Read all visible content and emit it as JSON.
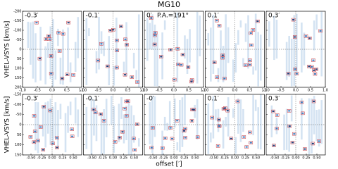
{
  "title": "MG10",
  "chart_data": [
    {
      "type": "image-grid",
      "panels": [
        "-0.3′",
        "-0.1′",
        "0′",
        "0.1′",
        "0.3′"
      ],
      "annotation": "P.A.=191°",
      "ylabel": "VHEL-VSYS [km/s]",
      "xlim": [
        -1,
        1
      ],
      "xticks": [
        {
          "value": -1,
          "label": "-1.0"
        },
        -0.5,
        {
          "value": 0,
          "label": "0.0"
        },
        0.5,
        {
          "value": 1,
          "label": "1.0"
        }
      ],
      "ylim": [
        -200,
        200
      ],
      "yticks": [
        -200,
        -150,
        -100,
        -50,
        0,
        50,
        100,
        150,
        200
      ],
      "y_inverted": true
    },
    {
      "type": "image-grid",
      "panels": [
        "-0.3′",
        "-0.1′",
        "-0′",
        "0.1′",
        "0.3′"
      ],
      "ylabel": "VHEL-VSYS [km/s]",
      "xlabel": "offset [′]",
      "xlim": [
        -0.7,
        0.7
      ],
      "xticks": [
        {
          "value": -0.5,
          "label": "-0.50"
        },
        -0.25,
        {
          "value": 0,
          "label": "0.00"
        },
        0.25,
        {
          "value": 0.5,
          "label": "0.50"
        }
      ],
      "ylim": [
        -150,
        150
      ],
      "yticks": [
        -150,
        -100,
        -50,
        0,
        50,
        100,
        150
      ],
      "y_inverted": true
    }
  ]
}
